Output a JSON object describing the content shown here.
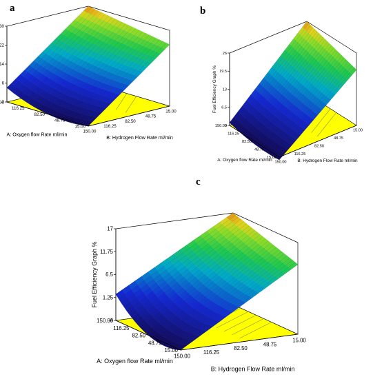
{
  "chart_data": [
    {
      "type": "surface",
      "panel": "a",
      "zlabel": "Fuel Efficiency Graph %",
      "xlabel": "A: Oxygen flow Rate ml/min",
      "ylabel": "B: Hydrogen Flow Rate ml/min",
      "x_ticks": [
        "15.00",
        "48.75",
        "82.50",
        "116.25",
        "150.00"
      ],
      "y_ticks": [
        "150.00",
        "116.25",
        "82.50",
        "48.75",
        "15.00"
      ],
      "z_ticks": [
        "-2",
        "6",
        "14",
        "22",
        "30"
      ],
      "zlim": [
        -2,
        30
      ],
      "surface_corners": {
        "A150_B150": 4,
        "A15_B150": -2,
        "A150_B15": 30,
        "A15_B15": 24
      },
      "minimum_z": -2
    },
    {
      "type": "surface",
      "panel": "b",
      "zlabel": "Fuel Efficiency Graph %",
      "xlabel": "A: Oxygen flow Rate ml/min",
      "ylabel": "B: Hydrogen Flow Rate ml/min",
      "x_ticks": [
        "15.00",
        "48.75",
        "82.50",
        "116.25",
        "150.00"
      ],
      "y_ticks": [
        "150.00",
        "116.25",
        "82.50",
        "48.75",
        "15.00"
      ],
      "z_ticks": [
        "0",
        "6.5",
        "13",
        "19.5",
        "26"
      ],
      "zlim": [
        0,
        26
      ],
      "surface_corners": {
        "A150_B150": 1,
        "A15_B150": -1,
        "A150_B15": 26,
        "A15_B15": 20
      },
      "minimum_z": -1
    },
    {
      "type": "surface",
      "panel": "c",
      "zlabel": "Fuel Efficiency Graph %",
      "xlabel": "A: Oxygen flow Rate ml/min",
      "ylabel": "B: Hydrogen Flow Rate ml/min",
      "x_ticks": [
        "15.00",
        "48.75",
        "82.50",
        "116.25",
        "150.00"
      ],
      "y_ticks": [
        "150.00",
        "116.25",
        "82.50",
        "48.75",
        "15.00"
      ],
      "z_ticks": [
        "-4",
        "1.25",
        "6.5",
        "11.75",
        "17"
      ],
      "zlim": [
        -4,
        17
      ],
      "surface_corners": {
        "A150_B150": 2,
        "A15_B150": -4,
        "A150_B15": 17,
        "A15_B15": 12
      },
      "minimum_z": -4
    }
  ]
}
